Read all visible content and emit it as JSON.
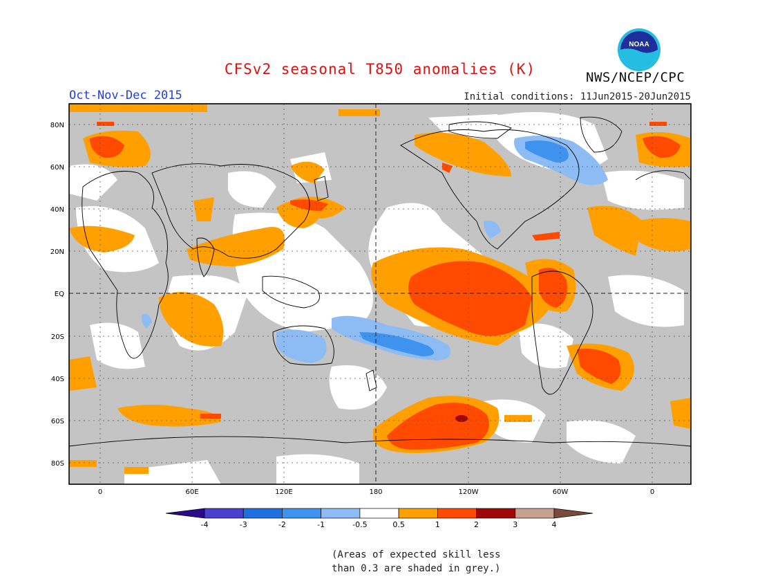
{
  "title": "CFSv2 seasonal T850 anomalies (K)",
  "organization": "NWS/NCEP/CPC",
  "logo_text": "NOAA",
  "period": "Oct-Nov-Dec 2015",
  "initial_conditions": "Initial conditions: 11Jun2015-20Jun2015",
  "lat_labels": [
    "80N",
    "60N",
    "40N",
    "20N",
    "EQ",
    "20S",
    "40S",
    "60S",
    "80S"
  ],
  "lon_labels": [
    "0",
    "60E",
    "120E",
    "180",
    "120W",
    "60W",
    "0"
  ],
  "colorbar": {
    "ticks": [
      "-4",
      "-3",
      "-2",
      "-1",
      "-0.5",
      "0.5",
      "1",
      "2",
      "3",
      "4"
    ],
    "colors": [
      "#2a0a8a",
      "#4b3fd0",
      "#1f6fe0",
      "#3f93ee",
      "#8dbcf5",
      "#ffffff",
      "#ffa000",
      "#ff4a00",
      "#a00808",
      "#c8a090",
      "#7a4a3a"
    ]
  },
  "footnote_line1": "(Areas of expected skill less",
  "footnote_line2": "than 0.3 are shaded in grey.)",
  "colors": {
    "title": "#e01010",
    "period": "#2040e0",
    "grey": "#c4c4c4"
  }
}
